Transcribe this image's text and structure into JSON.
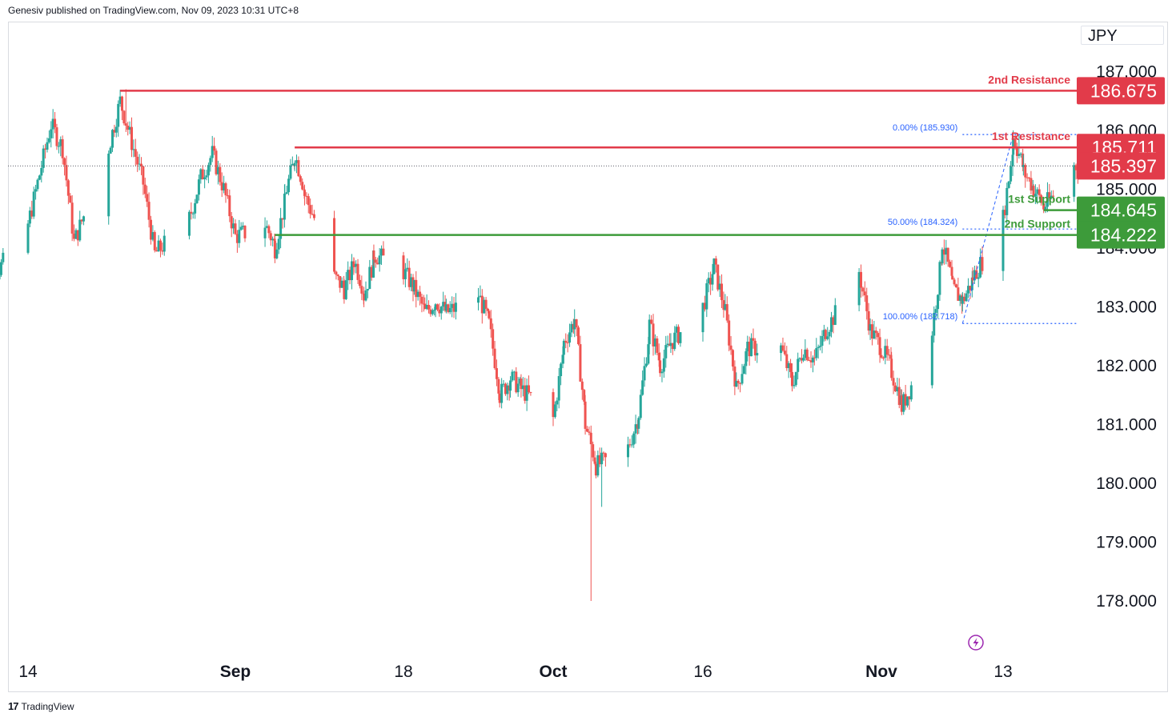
{
  "header": {
    "attribution": "Genesiv published on TradingView.com, Nov 09, 2023 10:31 UTC+8"
  },
  "currency_label": "JPY",
  "footer": {
    "brand": "TradingView",
    "logo_glyph": "17"
  },
  "colors": {
    "up": "#26a69a",
    "down": "#ef5350",
    "resistance": "#e23b4a",
    "support": "#3d9b3a",
    "fib": "#2962ff",
    "grid": "#ffffff",
    "text": "#131722",
    "current": "#e23b4a",
    "bolt": "#9c27b0"
  },
  "chart_data": {
    "type": "candlestick",
    "title": "",
    "xlabel": "",
    "ylabel": "",
    "ylim": [
      177.0,
      187.4
    ],
    "x_ticks": [
      {
        "label": "14",
        "date": "2023-08-14"
      },
      {
        "label": "Sep",
        "date": "2023-09-01"
      },
      {
        "label": "18",
        "date": "2023-09-18"
      },
      {
        "label": "Oct",
        "date": "2023-10-02"
      },
      {
        "label": "16",
        "date": "2023-10-16"
      },
      {
        "label": "Nov",
        "date": "2023-11-01"
      },
      {
        "label": "13",
        "date": "2023-11-13"
      }
    ],
    "y_ticks": [
      "187.000",
      "186.000",
      "185.000",
      "184.000",
      "183.000",
      "182.000",
      "181.000",
      "180.000",
      "179.000",
      "178.000"
    ],
    "price_path": [
      {
        "date": "2023-08-10",
        "price": 184.3
      },
      {
        "date": "2023-08-11",
        "price": 183.5
      },
      {
        "date": "2023-08-14",
        "price": 184.4
      },
      {
        "date": "2023-08-16",
        "price": 186.1
      },
      {
        "date": "2023-08-17",
        "price": 185.7
      },
      {
        "date": "2023-08-18",
        "price": 184.1
      },
      {
        "date": "2023-08-21",
        "price": 185.7
      },
      {
        "date": "2023-08-22",
        "price": 186.5
      },
      {
        "date": "2023-08-23",
        "price": 185.8
      },
      {
        "date": "2023-08-24",
        "price": 185.1
      },
      {
        "date": "2023-08-25",
        "price": 183.9
      },
      {
        "date": "2023-08-28",
        "price": 184.5
      },
      {
        "date": "2023-08-29",
        "price": 185.2
      },
      {
        "date": "2023-08-30",
        "price": 185.6
      },
      {
        "date": "2023-08-31",
        "price": 185.0
      },
      {
        "date": "2023-09-01",
        "price": 184.2
      },
      {
        "date": "2023-09-04",
        "price": 184.4
      },
      {
        "date": "2023-09-05",
        "price": 184.0
      },
      {
        "date": "2023-09-06",
        "price": 184.9
      },
      {
        "date": "2023-09-07",
        "price": 185.6
      },
      {
        "date": "2023-09-08",
        "price": 184.9
      },
      {
        "date": "2023-09-11",
        "price": 183.5
      },
      {
        "date": "2023-09-12",
        "price": 183.3
      },
      {
        "date": "2023-09-13",
        "price": 183.8
      },
      {
        "date": "2023-09-14",
        "price": 183.2
      },
      {
        "date": "2023-09-15",
        "price": 183.9
      },
      {
        "date": "2023-09-18",
        "price": 183.6
      },
      {
        "date": "2023-09-19",
        "price": 183.3
      },
      {
        "date": "2023-09-20",
        "price": 182.9
      },
      {
        "date": "2023-09-21",
        "price": 183.1
      },
      {
        "date": "2023-09-22",
        "price": 182.9
      },
      {
        "date": "2023-09-25",
        "price": 183.2
      },
      {
        "date": "2023-09-26",
        "price": 182.7
      },
      {
        "date": "2023-09-27",
        "price": 181.5
      },
      {
        "date": "2023-09-28",
        "price": 181.8
      },
      {
        "date": "2023-09-29",
        "price": 181.6
      },
      {
        "date": "2023-10-02",
        "price": 181.1
      },
      {
        "date": "2023-10-03",
        "price": 182.4
      },
      {
        "date": "2023-10-04",
        "price": 182.8
      },
      {
        "date": "2023-10-05",
        "price": 181.0
      },
      {
        "date": "2023-10-06",
        "price": 180.3
      },
      {
        "date": "2023-10-09",
        "price": 180.6
      },
      {
        "date": "2023-10-10",
        "price": 181.2
      },
      {
        "date": "2023-10-11",
        "price": 182.7
      },
      {
        "date": "2023-10-12",
        "price": 182.0
      },
      {
        "date": "2023-10-13",
        "price": 182.4
      },
      {
        "date": "2023-10-16",
        "price": 183.0
      },
      {
        "date": "2023-10-17",
        "price": 183.7
      },
      {
        "date": "2023-10-18",
        "price": 182.9
      },
      {
        "date": "2023-10-19",
        "price": 181.6
      },
      {
        "date": "2023-10-20",
        "price": 182.3
      },
      {
        "date": "2023-10-23",
        "price": 182.3
      },
      {
        "date": "2023-10-24",
        "price": 181.7
      },
      {
        "date": "2023-10-25",
        "price": 182.3
      },
      {
        "date": "2023-10-26",
        "price": 182.1
      },
      {
        "date": "2023-10-27",
        "price": 182.6
      },
      {
        "date": "2023-10-30",
        "price": 183.6
      },
      {
        "date": "2023-10-31",
        "price": 182.6
      },
      {
        "date": "2023-11-01",
        "price": 182.3
      },
      {
        "date": "2023-11-02",
        "price": 181.9
      },
      {
        "date": "2023-11-03",
        "price": 181.3
      },
      {
        "date": "2023-11-06",
        "price": 182.6
      },
      {
        "date": "2023-11-07",
        "price": 184.1
      },
      {
        "date": "2023-11-08",
        "price": 183.3
      },
      {
        "date": "2023-11-09",
        "price": 183.1
      },
      {
        "date": "2023-11-10",
        "price": 183.5
      },
      {
        "date": "2023-11-13",
        "price": 184.5
      },
      {
        "date": "2023-11-14",
        "price": 185.9
      },
      {
        "date": "2023-11-15",
        "price": 185.3
      },
      {
        "date": "2023-11-16",
        "price": 185.0
      },
      {
        "date": "2023-11-17",
        "price": 184.7
      },
      {
        "date": "2023-11-20",
        "price": 185.4
      },
      {
        "date": "2023-11-21",
        "price": 185.397
      }
    ],
    "wick_extremes": [
      {
        "date": "2023-10-05",
        "low": 178.0
      },
      {
        "date": "2023-10-06",
        "low": 179.6
      },
      {
        "date": "2023-08-22",
        "high": 186.7
      },
      {
        "date": "2023-11-14",
        "high": 185.93
      }
    ],
    "levels": [
      {
        "label": "2nd Resistance",
        "value": "186.675",
        "price": 186.675,
        "start_date": "2023-08-22",
        "kind": "resistance"
      },
      {
        "label": "1st Resistance",
        "value": "185.711",
        "price": 185.711,
        "start_date": "2023-09-07",
        "kind": "resistance"
      },
      {
        "label": "1st Support",
        "value": "184.645",
        "price": 184.645,
        "start_date": "2023-11-17",
        "kind": "support"
      },
      {
        "label": "2nd Support",
        "value": "184.222",
        "price": 184.222,
        "start_date": "2023-09-05",
        "kind": "support"
      }
    ],
    "current_price": {
      "value": "185.397",
      "price": 185.397
    },
    "fibonacci": [
      {
        "label": "0.00% (185.930)",
        "price": 185.93
      },
      {
        "label": "50.00% (184.324)",
        "price": 184.324
      },
      {
        "label": "100.00% (182.718)",
        "price": 182.718
      }
    ],
    "fib_anchor_dates": {
      "start": "2023-11-09",
      "end": "2023-11-14"
    }
  }
}
